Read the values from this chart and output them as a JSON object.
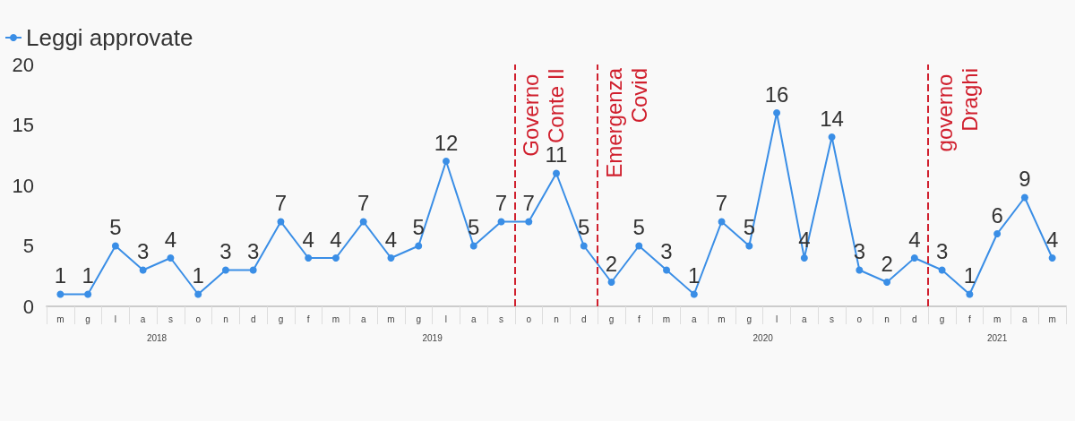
{
  "chart_data": {
    "type": "line",
    "categories": [
      "m",
      "g",
      "l",
      "a",
      "s",
      "o",
      "n",
      "d",
      "g",
      "f",
      "m",
      "a",
      "m",
      "g",
      "l",
      "a",
      "s",
      "o",
      "n",
      "d",
      "g",
      "f",
      "m",
      "a",
      "m",
      "g",
      "l",
      "a",
      "s",
      "o",
      "n",
      "d",
      "g",
      "f",
      "m",
      "a",
      "m"
    ],
    "series": [
      {
        "name": "Leggi approvate",
        "color": "#3a8ee6",
        "values": [
          1,
          1,
          5,
          3,
          4,
          1,
          3,
          3,
          7,
          4,
          4,
          7,
          4,
          5,
          12,
          5,
          7,
          7,
          11,
          5,
          2,
          5,
          3,
          1,
          7,
          5,
          16,
          4,
          14,
          3,
          2,
          4,
          3,
          1,
          6,
          9,
          4
        ]
      }
    ],
    "ylim": [
      0,
      20
    ],
    "yticks": [
      0,
      5,
      10,
      15,
      20
    ],
    "annotations": [
      "2018",
      "2019",
      "2020",
      "2021",
      "Governo Conte II",
      "Emergenza Covid",
      "governo Draghi"
    ],
    "data_labels": true,
    "marker": "circle",
    "line_style": "solid",
    "grid": false,
    "legend": "top left"
  }
}
